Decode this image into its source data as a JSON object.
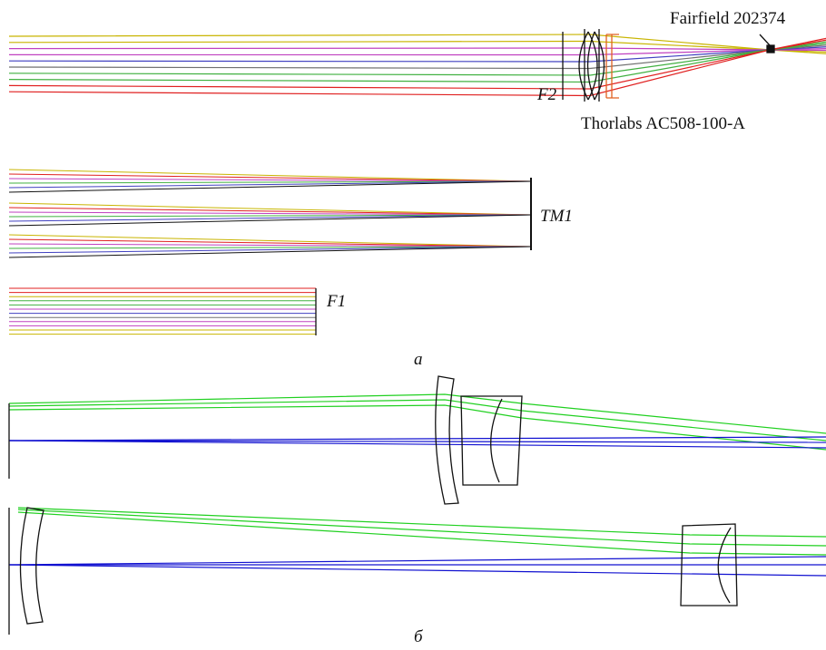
{
  "labels": {
    "top_lens_focus": "Fairfield 202374",
    "f2": "F2",
    "top_lens": "Thorlabs AC508-100-A",
    "tm1": "TM1",
    "f1": "F1",
    "caption_a": "а",
    "caption_b": "б"
  }
}
